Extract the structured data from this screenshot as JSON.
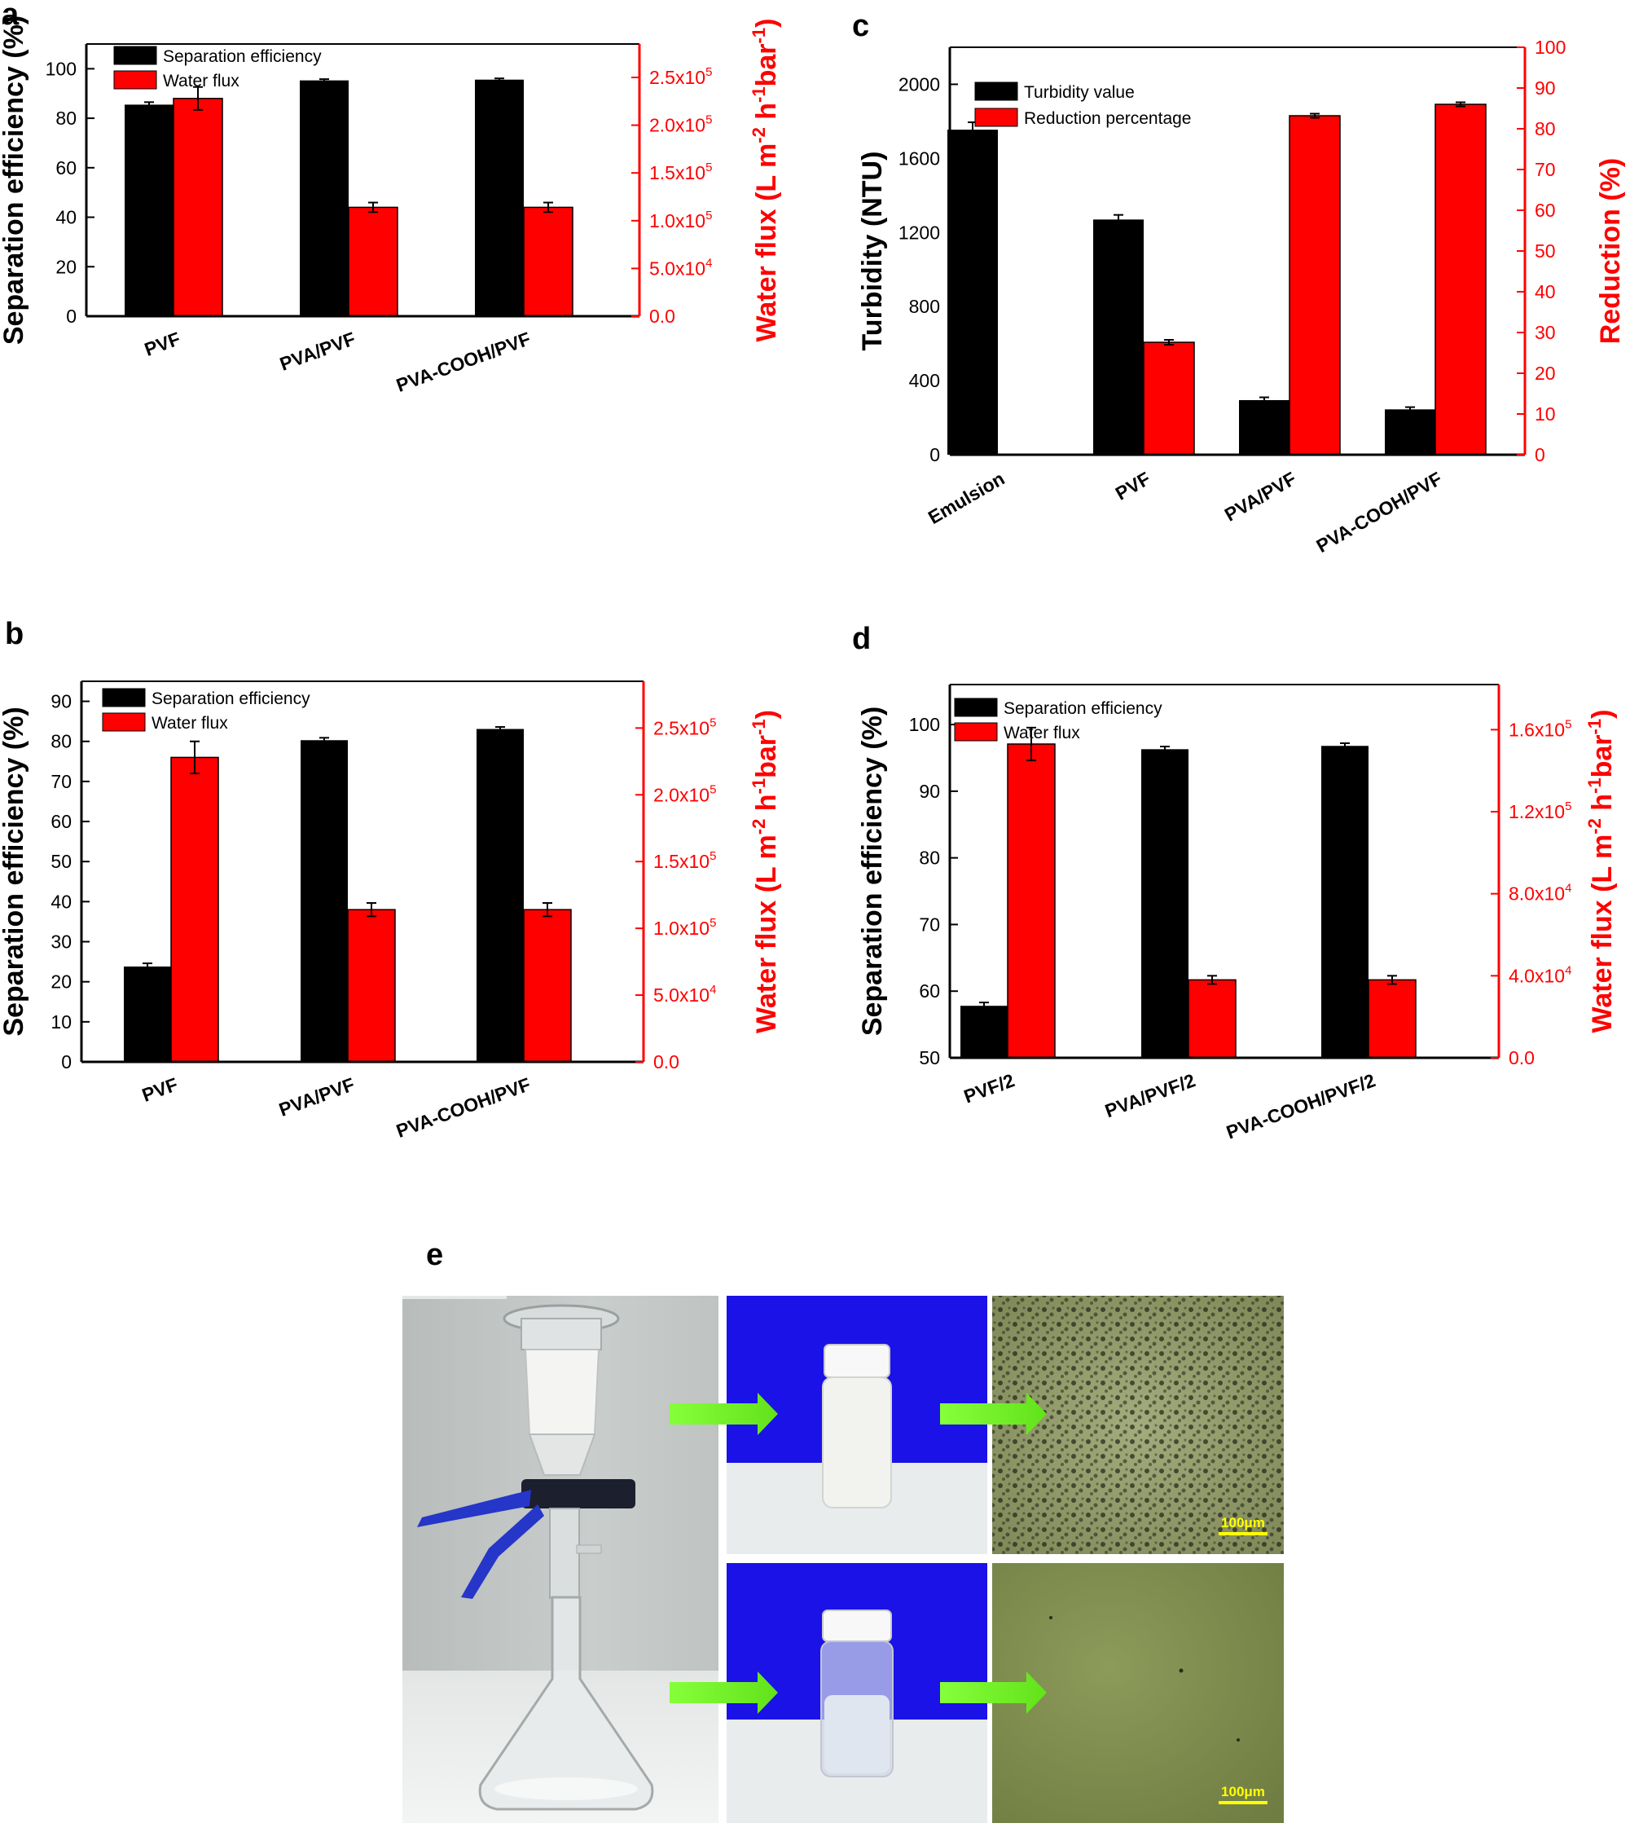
{
  "colors": {
    "black_bar": "#000000",
    "red_bar": "#ff0000",
    "right_axis": "#ff0000",
    "arrow": "#7fff2a",
    "scale_text": "#ffff00",
    "photo_bg": "#c4c8c6",
    "blue_bg": "#1a12e6",
    "micro_dark": "#8f9868",
    "micro_clear": "#7c8a4c"
  },
  "chart_data": [
    {
      "panel": "a",
      "type": "bar",
      "categories": [
        "PVF",
        "PVA/PVF",
        "PVA-COOH/PVF"
      ],
      "ylabel": "Separation efficiency (%)",
      "ylabel2_main": "Water flux (L m",
      "ylabel2_sup1": "-2",
      "ylabel2_mid": " h",
      "ylabel2_sup2": "-1",
      "ylabel2_end": "bar",
      "ylabel2_sup3": "-1",
      "ylabel2_close": ")",
      "ylim": [
        0,
        110
      ],
      "ylim2": [
        0,
        285000
      ],
      "yticks": [
        "0",
        "20",
        "40",
        "60",
        "80",
        "100"
      ],
      "y2ticks": [
        {
          "m": "0.0",
          "e": ""
        },
        {
          "m": "5.0x10",
          "e": "4"
        },
        {
          "m": "1.0x10",
          "e": "5"
        },
        {
          "m": "1.5x10",
          "e": "5"
        },
        {
          "m": "2.0x10",
          "e": "5"
        },
        {
          "m": "2.5x10",
          "e": "5"
        }
      ],
      "series": [
        {
          "name": "Separation efficiency",
          "axis": "left",
          "values": [
            85.5,
            95.3,
            95.6
          ],
          "errors": [
            1.0,
            0.5,
            0.5
          ]
        },
        {
          "name": "Water flux",
          "axis": "right",
          "values": [
            228000,
            114000,
            114000
          ],
          "errors": [
            12000,
            5000,
            5000
          ]
        }
      ],
      "legend": "top-left"
    },
    {
      "panel": "b",
      "type": "bar",
      "categories": [
        "PVF",
        "PVA/PVF",
        "PVA-COOH/PVF"
      ],
      "ylabel": "Separation efficiency (%)",
      "ylabel2_main": "Water flux (L m",
      "ylabel2_sup1": "-2",
      "ylabel2_mid": " h",
      "ylabel2_sup2": "-1",
      "ylabel2_end": "bar",
      "ylabel2_sup3": "-1",
      "ylabel2_close": ")",
      "ylim": [
        0,
        95
      ],
      "ylim2": [
        0,
        285000
      ],
      "yticks": [
        "0",
        "10",
        "20",
        "30",
        "40",
        "50",
        "60",
        "70",
        "80",
        "90"
      ],
      "y2ticks": [
        {
          "m": "0.0",
          "e": ""
        },
        {
          "m": "5.0x10",
          "e": "4"
        },
        {
          "m": "1.0x10",
          "e": "5"
        },
        {
          "m": "1.5x10",
          "e": "5"
        },
        {
          "m": "2.0x10",
          "e": "5"
        },
        {
          "m": "2.5x10",
          "e": "5"
        }
      ],
      "series": [
        {
          "name": "Separation efficiency",
          "axis": "left",
          "values": [
            23.8,
            80.3,
            83.1
          ],
          "errors": [
            0.8,
            0.6,
            0.5
          ]
        },
        {
          "name": "Water flux",
          "axis": "right",
          "values": [
            228000,
            114000,
            114000
          ],
          "errors": [
            12000,
            5000,
            5000
          ]
        }
      ],
      "legend": "top-left"
    },
    {
      "panel": "c",
      "type": "bar",
      "categories": [
        "Emulsion",
        "PVF",
        "PVA/PVF",
        "PVA-COOH/PVF"
      ],
      "ylabel": "Turbidity (NTU)",
      "ylabel2_main": "Reduction (%)",
      "ylim": [
        0,
        2200
      ],
      "ylim2": [
        0,
        100
      ],
      "yticks": [
        "0",
        "400",
        "800",
        "1200",
        "1600",
        "2000"
      ],
      "y2ticks": [
        {
          "m": "0",
          "e": ""
        },
        {
          "m": "10",
          "e": ""
        },
        {
          "m": "20",
          "e": ""
        },
        {
          "m": "30",
          "e": ""
        },
        {
          "m": "40",
          "e": ""
        },
        {
          "m": "50",
          "e": ""
        },
        {
          "m": "60",
          "e": ""
        },
        {
          "m": "70",
          "e": ""
        },
        {
          "m": "80",
          "e": ""
        },
        {
          "m": "90",
          "e": ""
        },
        {
          "m": "100",
          "e": ""
        }
      ],
      "series": [
        {
          "name": "Turbidity value",
          "axis": "left",
          "values": [
            1755,
            1270,
            295,
            245
          ],
          "errors": [
            40,
            25,
            15,
            12
          ]
        },
        {
          "name": "Reduction percentage",
          "axis": "right",
          "values": [
            null,
            27.6,
            83.2,
            86.0
          ],
          "errors": [
            0,
            0.6,
            0.5,
            0.5
          ]
        }
      ],
      "legend": "top-left"
    },
    {
      "panel": "d",
      "type": "bar",
      "categories": [
        "PVF/2",
        "PVA/PVF/2",
        "PVA-COOH/PVF/2"
      ],
      "ylabel": "Separation efficiency (%)",
      "ylabel2_main": "Water flux (L m",
      "ylabel2_sup1": "-2",
      "ylabel2_mid": " h",
      "ylabel2_sup2": "-1",
      "ylabel2_end": "bar",
      "ylabel2_sup3": "-1",
      "ylabel2_close": ")",
      "ylim": [
        50,
        106
      ],
      "ylim2": [
        0,
        182000
      ],
      "yticks": [
        "50",
        "60",
        "70",
        "80",
        "90",
        "100"
      ],
      "y2ticks": [
        {
          "m": "0.0",
          "e": ""
        },
        {
          "m": "4.0x10",
          "e": "4"
        },
        {
          "m": "8.0x10",
          "e": "4"
        },
        {
          "m": "1.2x10",
          "e": "5"
        },
        {
          "m": "1.6x10",
          "e": "5"
        }
      ],
      "series": [
        {
          "name": "Separation efficiency",
          "axis": "left",
          "values": [
            57.8,
            96.3,
            96.8
          ],
          "errors": [
            0.5,
            0.4,
            0.4
          ]
        },
        {
          "name": "Water flux",
          "axis": "right",
          "values": [
            153000,
            38000,
            38000
          ],
          "errors": [
            8000,
            2000,
            2000
          ]
        }
      ],
      "legend": "top-left"
    }
  ],
  "panel_e": {
    "label": "e",
    "scale_bar_top": "100μm",
    "scale_bar_bottom": "100μm"
  }
}
